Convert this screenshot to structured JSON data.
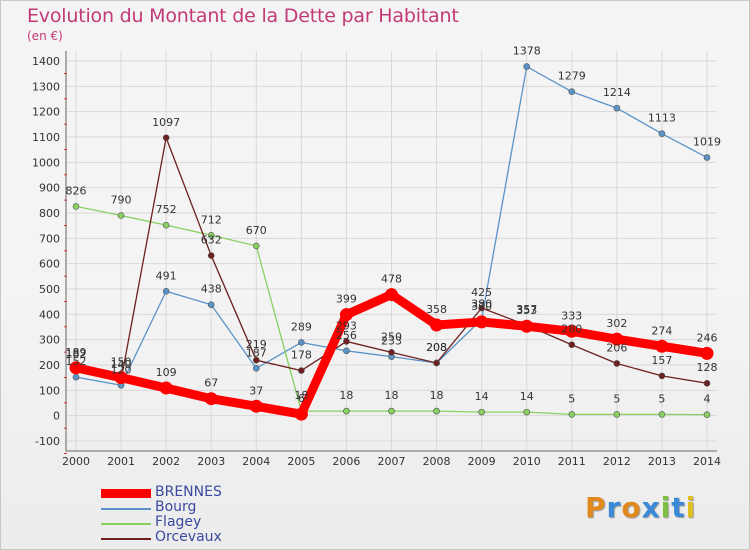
{
  "title": "Evolution du Montant de la Dette par Habitant",
  "subtitle": "(en €)",
  "logo": "Proxiti",
  "chart_data": {
    "type": "line",
    "title": "Evolution du Montant de la Dette par Habitant",
    "ylabel": "(en €)",
    "x": [
      "2000",
      "2001",
      "2002",
      "2003",
      "2004",
      "2005",
      "2006",
      "2007",
      "2008",
      "2009",
      "2010",
      "2011",
      "2012",
      "2013",
      "2014"
    ],
    "ylim": [
      -100,
      1400
    ],
    "yticks": [
      "-100",
      "0",
      "100",
      "200",
      "300",
      "400",
      "500",
      "600",
      "700",
      "800",
      "900",
      "1000",
      "1100",
      "1200",
      "1300",
      "1400"
    ],
    "grid": true,
    "legend_position": "bottom-left",
    "series": [
      {
        "name": "BRENNES",
        "color": "#ff0000",
        "values": [
          189,
          150,
          109,
          67,
          37,
          6,
          399,
          478,
          358,
          370,
          353,
          333,
          302,
          274,
          246
        ],
        "labels": [
          "189",
          "150",
          "109",
          "67",
          "37",
          "6",
          "399",
          "478",
          "358",
          "370",
          "353",
          "333",
          "302",
          "274",
          "246"
        ]
      },
      {
        "name": "Bourg",
        "color": "#5a93c8",
        "values": [
          152,
          120,
          491,
          438,
          187,
          289,
          256,
          233,
          208,
          380,
          1378,
          1279,
          1214,
          1113,
          1019
        ],
        "labels": [
          "152",
          "120",
          "491",
          "438",
          "187",
          "289",
          "256",
          "233",
          "208",
          "380",
          "1378",
          "1279",
          "1214",
          "1113",
          "1019"
        ]
      },
      {
        "name": "Flagey",
        "color": "#88d060",
        "values": [
          826,
          790,
          752,
          712,
          670,
          18,
          18,
          18,
          18,
          14,
          14,
          5,
          5,
          5,
          4
        ],
        "labels": [
          "826",
          "790",
          "752",
          "712",
          "670",
          "18",
          "18",
          "18",
          "18",
          "14",
          "14",
          "5",
          "5",
          "5",
          "4"
        ]
      },
      {
        "name": "Orcevaux",
        "color": "#6e2020",
        "values": [
          182,
          140,
          1097,
          632,
          219,
          178,
          293,
          250,
          208,
          425,
          357,
          280,
          206,
          157,
          128
        ],
        "labels": [
          "182",
          "140",
          "1097",
          "632",
          "219",
          "178",
          "293",
          "250",
          "208",
          "425",
          "357",
          "280",
          "206",
          "157",
          "128"
        ]
      }
    ]
  }
}
